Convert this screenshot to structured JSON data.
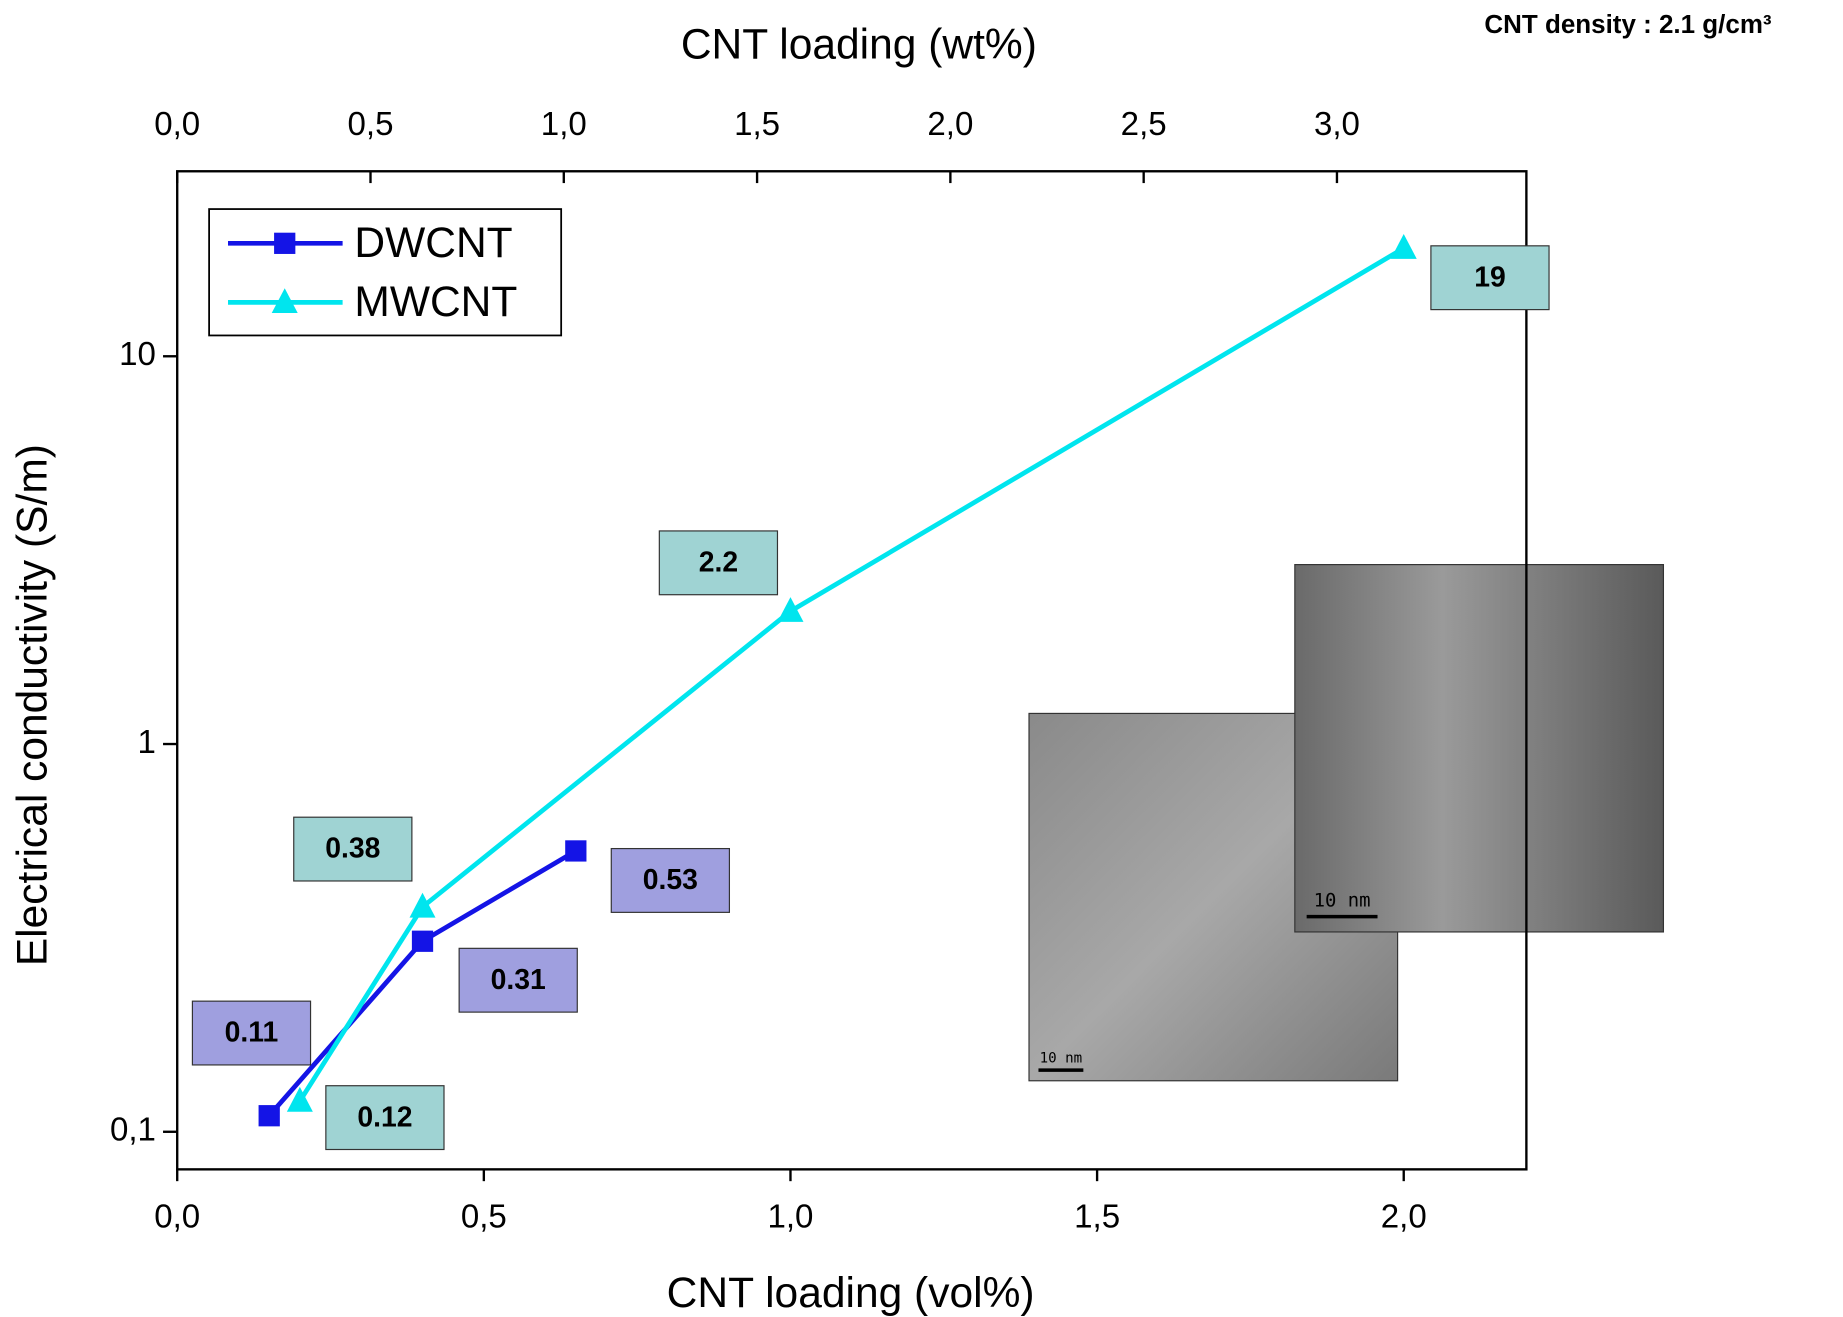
{
  "chart_data": {
    "type": "line",
    "x_label": "CNT loading (vol%)",
    "x2_label": "CNT loading (wt%)",
    "y_label": "Electrical conductivity (S/m)",
    "annotation": "CNT density : 2.1 g/cm³",
    "inset_labels": [
      "10 nm",
      "10 nm"
    ],
    "log_y": true,
    "legend": "upper left",
    "xlim": [
      0,
      2.2
    ],
    "xticks": [
      {
        "value": 0,
        "label": "0,0"
      },
      {
        "value": 0.5,
        "label": "0,5"
      },
      {
        "value": 1,
        "label": "1,0"
      },
      {
        "value": 1.5,
        "label": "1,5"
      },
      {
        "value": 2,
        "label": "2,0"
      }
    ],
    "x2lim": [
      0,
      3.49
    ],
    "x2ticks": [
      {
        "value": 0,
        "label": "0,0"
      },
      {
        "value": 0.5,
        "label": "0,5"
      },
      {
        "value": 1,
        "label": "1,0"
      },
      {
        "value": 1.5,
        "label": "1,5"
      },
      {
        "value": 2,
        "label": "2,0"
      },
      {
        "value": 2.5,
        "label": "2,5"
      },
      {
        "value": 3,
        "label": "3,0"
      }
    ],
    "ylim": [
      0.08,
      30
    ],
    "yticks": [
      {
        "value": 0.1,
        "label": "0,1"
      },
      1,
      10
    ],
    "series": [
      {
        "name": "DWCNT",
        "color": "#1414e6",
        "marker": "square",
        "label_color": "#9f9fdf",
        "x": [
          0.15,
          0.4,
          0.65
        ],
        "values": [
          0.11,
          0.31,
          0.53
        ]
      },
      {
        "name": "MWCNT",
        "color": "#00e5ee",
        "marker": "triangle",
        "label_color": "#9fd3d3",
        "x": [
          0.2,
          0.4,
          1.0,
          2.0
        ],
        "values": [
          0.12,
          0.38,
          2.2,
          19
        ]
      }
    ]
  }
}
